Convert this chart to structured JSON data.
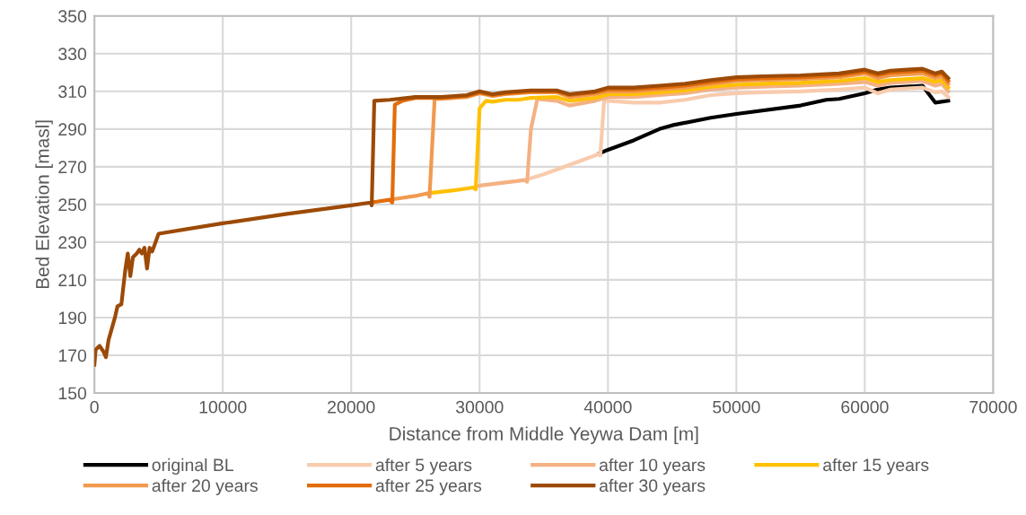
{
  "chart_data": {
    "type": "line",
    "xlabel": "Distance from Middle Yeywa Dam [m]",
    "ylabel": "Bed Elevation [masl]",
    "xlim": [
      0,
      70000
    ],
    "xticks": [
      0,
      10000,
      20000,
      30000,
      40000,
      50000,
      60000,
      70000
    ],
    "ylim": [
      150,
      350
    ],
    "yticks": [
      150,
      170,
      190,
      210,
      230,
      250,
      270,
      290,
      310,
      330,
      350
    ],
    "grid": true,
    "legend": "bottom",
    "marker": "none",
    "line_style": "solid",
    "series": [
      {
        "name": "original BL",
        "color": "#000000",
        "x": [
          39300,
          40000,
          42000,
          44000,
          45000,
          48000,
          50000,
          55000,
          57000,
          58000,
          60000,
          61000,
          62000,
          64500,
          65500,
          66500
        ],
        "values": [
          277,
          279,
          284,
          290,
          292,
          296,
          298,
          302.5,
          305.5,
          306,
          309,
          311,
          312,
          313,
          304,
          305
        ]
      },
      {
        "name": "after 5 years",
        "color": "#f8cbad",
        "x": [
          33800,
          35000,
          37000,
          39000,
          39300,
          39400,
          39700,
          40000,
          42000,
          44000,
          46000,
          48000,
          50000,
          52000,
          55000,
          58000,
          60000,
          61000,
          62000,
          64500,
          65500,
          66000,
          66500
        ],
        "values": [
          263.5,
          266,
          271,
          276,
          277,
          276,
          305,
          305,
          304,
          304,
          305.5,
          308,
          309,
          309.5,
          310,
          311,
          312,
          309,
          311,
          312,
          309.5,
          310,
          307
        ]
      },
      {
        "name": "after 10 years",
        "color": "#f4b183",
        "x": [
          29800,
          30000,
          33000,
          33500,
          33700,
          34000,
          34500,
          36000,
          37000,
          39000,
          40000,
          42000,
          44000,
          46000,
          48000,
          50000,
          52000,
          55000,
          58000,
          60000,
          61000,
          62000,
          64500,
          65500,
          66000,
          66500
        ],
        "values": [
          259.5,
          260,
          262.5,
          263,
          262,
          290,
          306,
          305,
          302.5,
          305,
          307,
          307,
          308,
          309,
          311,
          312,
          312.5,
          313,
          314,
          315,
          313,
          314.5,
          315.5,
          313,
          314,
          310
        ]
      },
      {
        "name": "after 15 years",
        "color": "#ffc000",
        "x": [
          26300,
          28000,
          29500,
          29700,
          30000,
          30500,
          31000,
          32000,
          33000,
          34000,
          36000,
          37000,
          39000,
          40000,
          42000,
          44000,
          46000,
          48000,
          50000,
          52000,
          55000,
          58000,
          60000,
          61000,
          62000,
          64500,
          65500,
          66000,
          66500
        ],
        "values": [
          256.2,
          257.5,
          259,
          258,
          301,
          305,
          304.5,
          305.5,
          305.5,
          306.5,
          307,
          305,
          306.5,
          308.5,
          308.5,
          309.5,
          310.5,
          312.5,
          313.5,
          314,
          314.5,
          315.5,
          317,
          315,
          316,
          317,
          315,
          316,
          312
        ]
      },
      {
        "name": "after 20 years",
        "color": "#f19a4f",
        "x": [
          23300,
          25000,
          26000,
          26100,
          26500,
          27000,
          29000,
          30000,
          31000,
          32000,
          34000,
          36000,
          37000,
          39000,
          40000,
          42000,
          44000,
          46000,
          48000,
          50000,
          52000,
          55000,
          58000,
          60000,
          61000,
          62000,
          64500,
          65500,
          66000,
          66500
        ],
        "values": [
          252.8,
          254.5,
          256,
          254,
          306,
          306,
          307,
          309,
          307.5,
          308.5,
          309.5,
          309.5,
          307,
          308.5,
          310,
          310,
          311,
          312,
          314,
          315.5,
          316,
          316.5,
          317.5,
          319.5,
          317,
          318.5,
          319.5,
          317,
          318,
          314
        ]
      },
      {
        "name": "after 25 years",
        "color": "#e36c0a",
        "x": [
          21700,
          22000,
          23000,
          23200,
          23400,
          24000,
          25000,
          27000,
          29000,
          30000,
          31000,
          32000,
          34000,
          36000,
          37000,
          39000,
          40000,
          42000,
          44000,
          46000,
          48000,
          50000,
          52000,
          55000,
          58000,
          60000,
          61000,
          62000,
          64500,
          65500,
          66000,
          66500
        ],
        "values": [
          251.2,
          251.5,
          252.5,
          251,
          303,
          305,
          306.5,
          306.5,
          307.5,
          309.5,
          308,
          309,
          310,
          310,
          308,
          309.5,
          311,
          311,
          312,
          313,
          315,
          316.5,
          317,
          317.5,
          318.5,
          320.5,
          318.5,
          320,
          321,
          318.5,
          319.5,
          315.5
        ]
      },
      {
        "name": "after 30 years",
        "color": "#9c4a06",
        "x": [
          0,
          100,
          400,
          700,
          900,
          1100,
          1600,
          1800,
          2100,
          2400,
          2600,
          2800,
          3000,
          3300,
          3500,
          3700,
          3900,
          4100,
          4300,
          4500,
          5000,
          10000,
          15000,
          20000,
          21500,
          21600,
          21800,
          23000,
          25000,
          27000,
          29000,
          30000,
          31000,
          32000,
          34000,
          36000,
          37000,
          39000,
          40000,
          42000,
          44000,
          46000,
          48000,
          50000,
          52000,
          55000,
          58000,
          60000,
          61000,
          62000,
          64500,
          65500,
          66000,
          66500
        ],
        "values": [
          165,
          173,
          175,
          172,
          169,
          178,
          190,
          196,
          197,
          215,
          224,
          212,
          222,
          224,
          226,
          224,
          227,
          216,
          227,
          225,
          234.5,
          240,
          245,
          249.5,
          251,
          249.5,
          305,
          305.5,
          307,
          307,
          308,
          310,
          308.5,
          309.5,
          310.5,
          310.5,
          308.5,
          310,
          312,
          312,
          313,
          314,
          316,
          317.5,
          318,
          318.5,
          319.5,
          321.5,
          319.5,
          321,
          322,
          319.5,
          320.5,
          317
        ]
      }
    ]
  }
}
